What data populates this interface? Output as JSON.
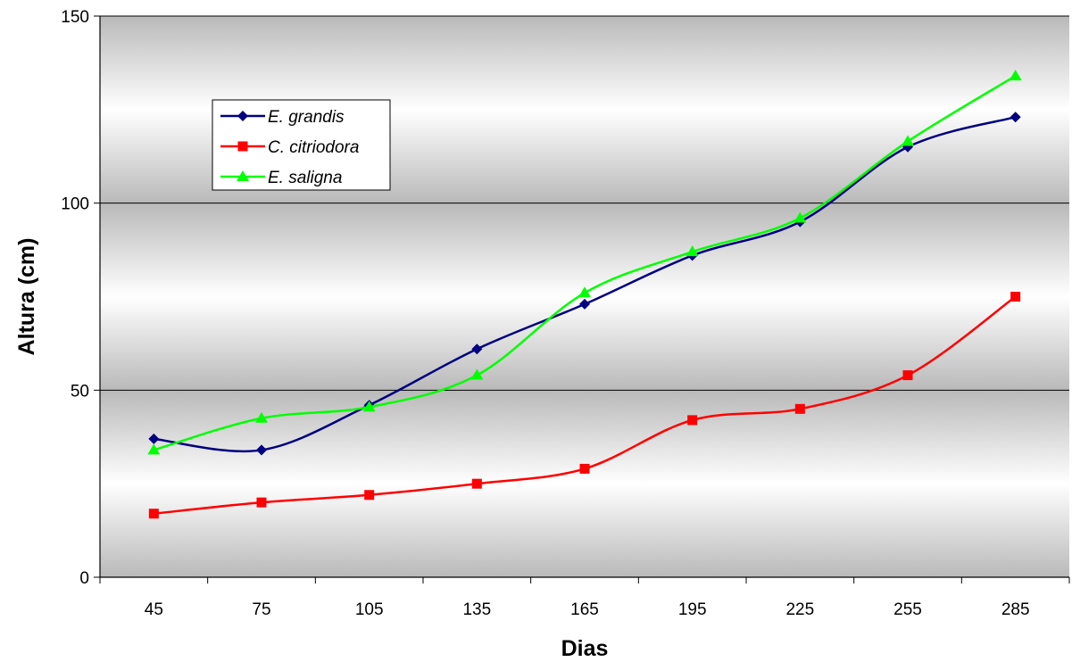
{
  "chart_data": {
    "type": "line",
    "title": "",
    "xlabel": "Dias",
    "ylabel": "Altura (cm)",
    "categories": [
      45,
      75,
      105,
      135,
      165,
      195,
      225,
      255,
      285
    ],
    "ylim": [
      0,
      150
    ],
    "yticks": [
      0,
      50,
      100,
      150
    ],
    "grid": true,
    "smooth": true,
    "legend": "top-left (inside plot)",
    "series": [
      {
        "name": "E. grandis",
        "color": "#000080",
        "marker": "diamond",
        "values": [
          37,
          34,
          46,
          61,
          73,
          86,
          95,
          115,
          123
        ]
      },
      {
        "name": "C. citriodora",
        "color": "#ff0000",
        "marker": "square",
        "values": [
          17,
          20,
          22,
          25,
          29,
          42,
          45,
          54,
          75
        ]
      },
      {
        "name": "E. saligna",
        "color": "#00ff00",
        "marker": "triangle",
        "values": [
          34,
          42.5,
          45.5,
          54,
          76,
          87,
          96,
          116.5,
          134
        ]
      }
    ]
  }
}
